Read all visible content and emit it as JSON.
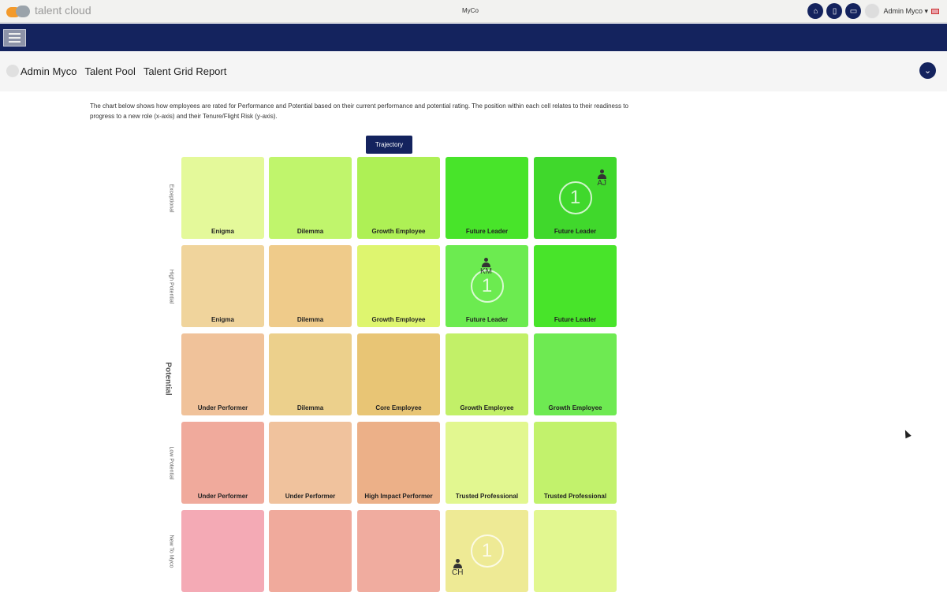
{
  "app": {
    "logo_text": "talent cloud",
    "title": "MyCo",
    "user": "Admin Myco ▾",
    "icons": [
      "home-icon",
      "document-icon",
      "monitor-icon"
    ]
  },
  "breadcrumb": [
    "Admin Myco",
    "Talent Pool",
    "Talent Grid Report"
  ],
  "description": "The chart below shows how employees are rated for Performance and Potential based on their current performance and potential rating.  The position within each cell relates to their readiness to progress to a new role (x-axis) and their Tenure/Flight Risk (y-axis).",
  "trajectory_label": "Trajectory",
  "y_axis_label": "Potential",
  "row_labels": [
    "Exceptional",
    "High Potential",
    "Potential",
    "Low Potential",
    "New To Myco"
  ],
  "grid": [
    [
      {
        "label": "Enigma",
        "color": "#e4f99a"
      },
      {
        "label": "Dilemma",
        "color": "#c0f56c"
      },
      {
        "label": "Growth Employee",
        "color": "#aef055"
      },
      {
        "label": "Future Leader",
        "color": "#48e42a"
      },
      {
        "label": "Future Leader",
        "color": "#40d82c",
        "count": "1",
        "employee": "AJ"
      }
    ],
    [
      {
        "label": "Enigma",
        "color": "#f0d49c"
      },
      {
        "label": "Dilemma",
        "color": "#efcb8a"
      },
      {
        "label": "Growth Employee",
        "color": "#def56f"
      },
      {
        "label": "Future Leader",
        "color": "#6ceb50",
        "count": "1",
        "employee": "KM"
      },
      {
        "label": "Future Leader",
        "color": "#48e42a"
      }
    ],
    [
      {
        "label": "Under Performer",
        "color": "#f0c29a"
      },
      {
        "label": "Dilemma",
        "color": "#ecd08c"
      },
      {
        "label": "Core Employee",
        "color": "#e8c575"
      },
      {
        "label": "Growth Employee",
        "color": "#c2f068"
      },
      {
        "label": "Growth Employee",
        "color": "#6eea52"
      }
    ],
    [
      {
        "label": "Under Performer",
        "color": "#f0aa9c"
      },
      {
        "label": "Under Performer",
        "color": "#f0c29d"
      },
      {
        "label": "High Impact Performer",
        "color": "#ecb088"
      },
      {
        "label": "Trusted Professional",
        "color": "#e2f790"
      },
      {
        "label": "Trusted Professional",
        "color": "#c2f26c"
      }
    ],
    [
      {
        "label": "",
        "color": "#f4aab5"
      },
      {
        "label": "",
        "color": "#f0aa9c"
      },
      {
        "label": "",
        "color": "#f0ac9f"
      },
      {
        "label": "",
        "color": "#eeea95",
        "count": "1",
        "employee": "CH"
      },
      {
        "label": "",
        "color": "#e2f790"
      }
    ]
  ]
}
